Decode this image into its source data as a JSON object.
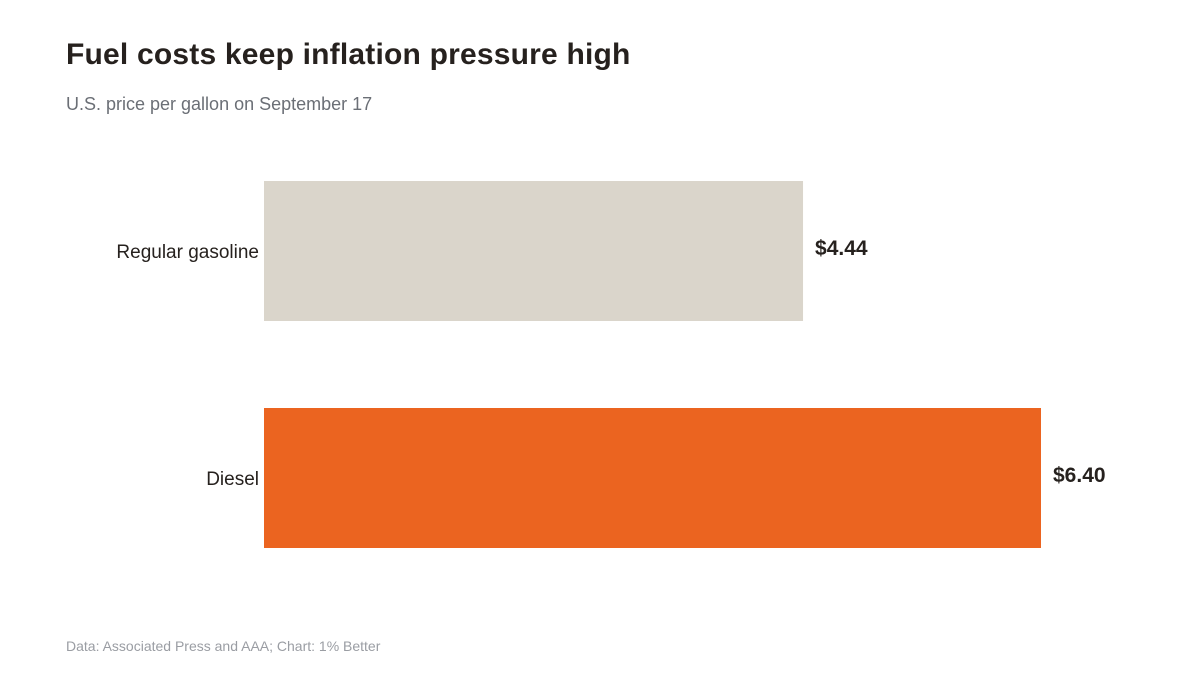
{
  "chart_data": {
    "type": "bar",
    "orientation": "horizontal",
    "title": "Fuel costs keep inflation pressure high",
    "subtitle": "U.S. price per gallon on September 17",
    "source": "Data: Associated Press and AAA; Chart: 1% Better",
    "categories": [
      "Regular gasoline",
      "Diesel"
    ],
    "values": [
      4.44,
      6.4
    ],
    "value_labels": [
      "$4.44",
      "$6.40"
    ],
    "colors": [
      "#dad5cb",
      "#eb6420"
    ],
    "xlim": [
      0,
      6.4
    ],
    "grid": false,
    "legend": "none"
  }
}
